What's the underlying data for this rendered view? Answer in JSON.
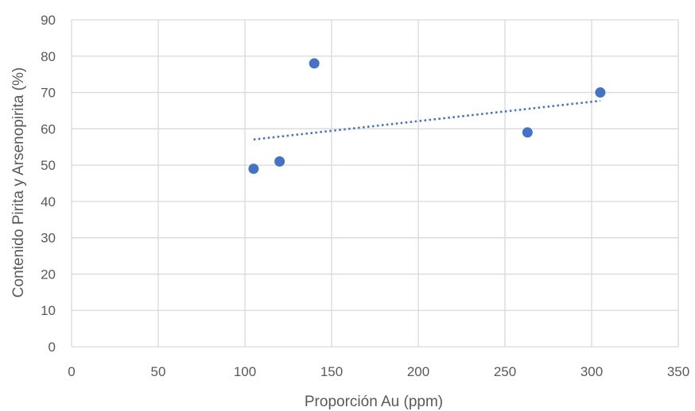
{
  "chart_data": {
    "type": "scatter",
    "title": "",
    "xlabel": "Proporción Au (ppm)",
    "ylabel": "Contenido Pirita y Arsenopirita (%)",
    "xlim": [
      0,
      350
    ],
    "ylim": [
      0,
      90
    ],
    "xticks": [
      "0",
      "50",
      "100",
      "150",
      "200",
      "250",
      "300",
      "350"
    ],
    "yticks": [
      "0",
      "10",
      "20",
      "30",
      "40",
      "50",
      "60",
      "70",
      "80",
      "90"
    ],
    "grid": true,
    "series": [
      {
        "x": [
          105,
          120,
          140,
          263,
          305
        ],
        "y": [
          49,
          51,
          78,
          59,
          70
        ],
        "color": "#4472c4",
        "trendline": {
          "type": "linear",
          "style": "dotted"
        }
      }
    ]
  }
}
